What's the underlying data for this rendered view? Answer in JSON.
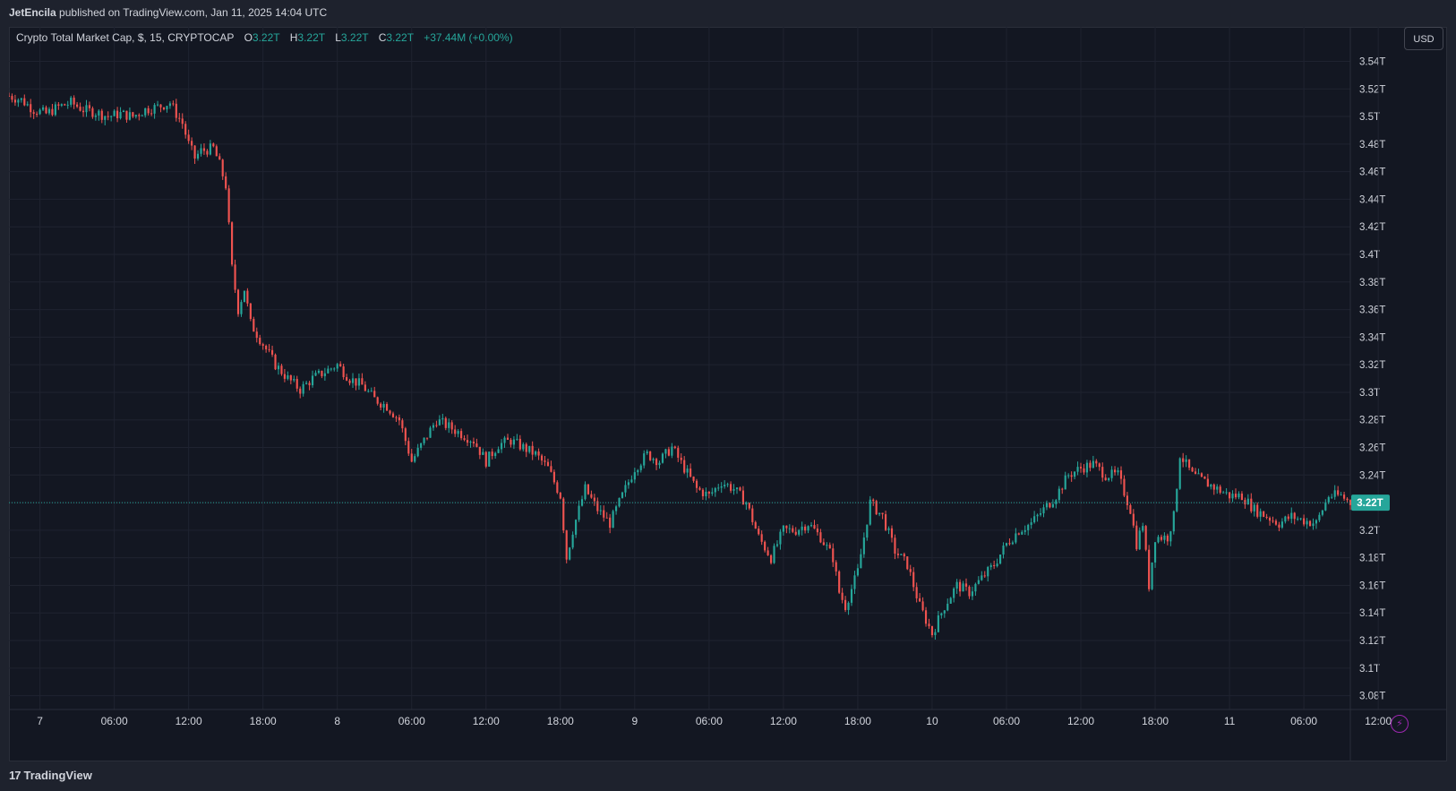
{
  "header": {
    "author": "JetEncila",
    "published_text": "published on TradingView.com, Jan 11, 2025 14:04 UTC"
  },
  "legend": {
    "symbol": "Crypto Total Market Cap, $, 15, CRYPTOCAP",
    "o_label": "O",
    "o_value": "3.22T",
    "h_label": "H",
    "h_value": "3.22T",
    "l_label": "L",
    "l_value": "3.22T",
    "c_label": "C",
    "c_value": "3.22T",
    "change": "+37.44M (+0.00%)"
  },
  "currency_button": "USD",
  "footer": {
    "brand_mark": "17",
    "brand_name": "TradingView"
  },
  "icons": {
    "bolt": "lightning-icon",
    "brand": "tradingview-logo-icon"
  },
  "colors": {
    "up": "#26a69a",
    "down": "#ef5350",
    "background": "#131722",
    "grid": "#1f2330",
    "text": "#d1d4dc",
    "price_line": "#26a69a"
  },
  "chart_data": {
    "type": "candlestick",
    "title": "Crypto Total Market Cap, $, 15, CRYPTOCAP",
    "timeframe": "15",
    "y_unit": "T",
    "ylim": [
      3.07,
      3.565
    ],
    "y_ticks": [
      3.54,
      3.52,
      3.5,
      3.48,
      3.46,
      3.44,
      3.42,
      3.4,
      3.38,
      3.36,
      3.34,
      3.32,
      3.3,
      3.28,
      3.26,
      3.24,
      3.22,
      3.2,
      3.18,
      3.16,
      3.14,
      3.12,
      3.1,
      3.08
    ],
    "y_tick_labels": [
      "3.54T",
      "3.52T",
      "3.5T",
      "3.48T",
      "3.46T",
      "3.44T",
      "3.42T",
      "3.4T",
      "3.38T",
      "3.36T",
      "3.34T",
      "3.32T",
      "3.3T",
      "3.28T",
      "3.26T",
      "3.24T",
      "3.22T",
      "3.2T",
      "3.18T",
      "3.16T",
      "3.14T",
      "3.12T",
      "3.1T",
      "3.08T"
    ],
    "x_ticks": [
      "7",
      "06:00",
      "12:00",
      "18:00",
      "8",
      "06:00",
      "12:00",
      "18:00",
      "9",
      "06:00",
      "12:00",
      "18:00",
      "10",
      "06:00",
      "12:00",
      "18:00",
      "11",
      "06:00",
      "12:00"
    ],
    "x_range_hours": [
      -2.5,
      105.75
    ],
    "current_price": 3.22,
    "current_price_label": "3.22T",
    "close_path": [
      [
        -2.5,
        3.515
      ],
      [
        -1.5,
        3.512
      ],
      [
        -0.5,
        3.505
      ],
      [
        0.5,
        3.502
      ],
      [
        1.5,
        3.507
      ],
      [
        2.5,
        3.51
      ],
      [
        3.5,
        3.505
      ],
      [
        4.5,
        3.503
      ],
      [
        5.5,
        3.5
      ],
      [
        6.5,
        3.502
      ],
      [
        7.5,
        3.5
      ],
      [
        8.5,
        3.505
      ],
      [
        9.5,
        3.507
      ],
      [
        10.5,
        3.51
      ],
      [
        11.0,
        3.502
      ],
      [
        11.5,
        3.495
      ],
      [
        12.0,
        3.48
      ],
      [
        12.5,
        3.47
      ],
      [
        13.0,
        3.475
      ],
      [
        14.0,
        3.477
      ],
      [
        14.5,
        3.465
      ],
      [
        15.0,
        3.45
      ],
      [
        15.5,
        3.39
      ],
      [
        16.0,
        3.36
      ],
      [
        16.5,
        3.375
      ],
      [
        17.0,
        3.35
      ],
      [
        18.0,
        3.335
      ],
      [
        19.0,
        3.32
      ],
      [
        20.0,
        3.31
      ],
      [
        21.0,
        3.302
      ],
      [
        22.0,
        3.31
      ],
      [
        23.0,
        3.315
      ],
      [
        24.0,
        3.32
      ],
      [
        25.0,
        3.31
      ],
      [
        26.0,
        3.305
      ],
      [
        27.0,
        3.295
      ],
      [
        28.0,
        3.29
      ],
      [
        29.0,
        3.28
      ],
      [
        30.0,
        3.25
      ],
      [
        31.0,
        3.265
      ],
      [
        32.0,
        3.28
      ],
      [
        33.0,
        3.275
      ],
      [
        34.0,
        3.27
      ],
      [
        35.0,
        3.265
      ],
      [
        36.0,
        3.25
      ],
      [
        37.0,
        3.262
      ],
      [
        38.0,
        3.265
      ],
      [
        39.0,
        3.26
      ],
      [
        40.0,
        3.255
      ],
      [
        41.0,
        3.245
      ],
      [
        42.0,
        3.225
      ],
      [
        42.5,
        3.18
      ],
      [
        43.0,
        3.2
      ],
      [
        44.0,
        3.23
      ],
      [
        45.0,
        3.215
      ],
      [
        46.0,
        3.205
      ],
      [
        47.0,
        3.225
      ],
      [
        48.0,
        3.245
      ],
      [
        49.0,
        3.255
      ],
      [
        50.0,
        3.25
      ],
      [
        51.0,
        3.26
      ],
      [
        52.0,
        3.245
      ],
      [
        53.0,
        3.23
      ],
      [
        54.0,
        3.225
      ],
      [
        55.0,
        3.235
      ],
      [
        56.0,
        3.23
      ],
      [
        57.0,
        3.22
      ],
      [
        58.0,
        3.195
      ],
      [
        59.0,
        3.18
      ],
      [
        60.0,
        3.2
      ],
      [
        61.0,
        3.2
      ],
      [
        62.0,
        3.205
      ],
      [
        63.0,
        3.195
      ],
      [
        64.0,
        3.18
      ],
      [
        64.5,
        3.155
      ],
      [
        65.0,
        3.145
      ],
      [
        66.0,
        3.17
      ],
      [
        67.0,
        3.22
      ],
      [
        68.0,
        3.21
      ],
      [
        69.0,
        3.185
      ],
      [
        70.0,
        3.175
      ],
      [
        71.0,
        3.145
      ],
      [
        72.0,
        3.125
      ],
      [
        73.0,
        3.145
      ],
      [
        74.0,
        3.16
      ],
      [
        75.0,
        3.155
      ],
      [
        76.0,
        3.165
      ],
      [
        77.0,
        3.175
      ],
      [
        78.0,
        3.19
      ],
      [
        79.0,
        3.2
      ],
      [
        80.0,
        3.205
      ],
      [
        81.0,
        3.215
      ],
      [
        82.0,
        3.225
      ],
      [
        83.0,
        3.24
      ],
      [
        84.0,
        3.245
      ],
      [
        85.0,
        3.248
      ],
      [
        86.0,
        3.24
      ],
      [
        87.0,
        3.24
      ],
      [
        88.0,
        3.215
      ],
      [
        88.5,
        3.19
      ],
      [
        89.0,
        3.205
      ],
      [
        89.5,
        3.16
      ],
      [
        90.0,
        3.195
      ],
      [
        91.0,
        3.195
      ],
      [
        91.5,
        3.21
      ],
      [
        92.0,
        3.255
      ],
      [
        93.0,
        3.24
      ],
      [
        94.0,
        3.235
      ],
      [
        95.0,
        3.23
      ],
      [
        96.0,
        3.225
      ],
      [
        97.0,
        3.225
      ],
      [
        98.0,
        3.215
      ],
      [
        99.0,
        3.21
      ],
      [
        100.0,
        3.205
      ],
      [
        101.0,
        3.21
      ],
      [
        102.0,
        3.207
      ],
      [
        103.0,
        3.205
      ],
      [
        104.0,
        3.225
      ],
      [
        105.0,
        3.225
      ],
      [
        105.75,
        3.22
      ]
    ]
  }
}
